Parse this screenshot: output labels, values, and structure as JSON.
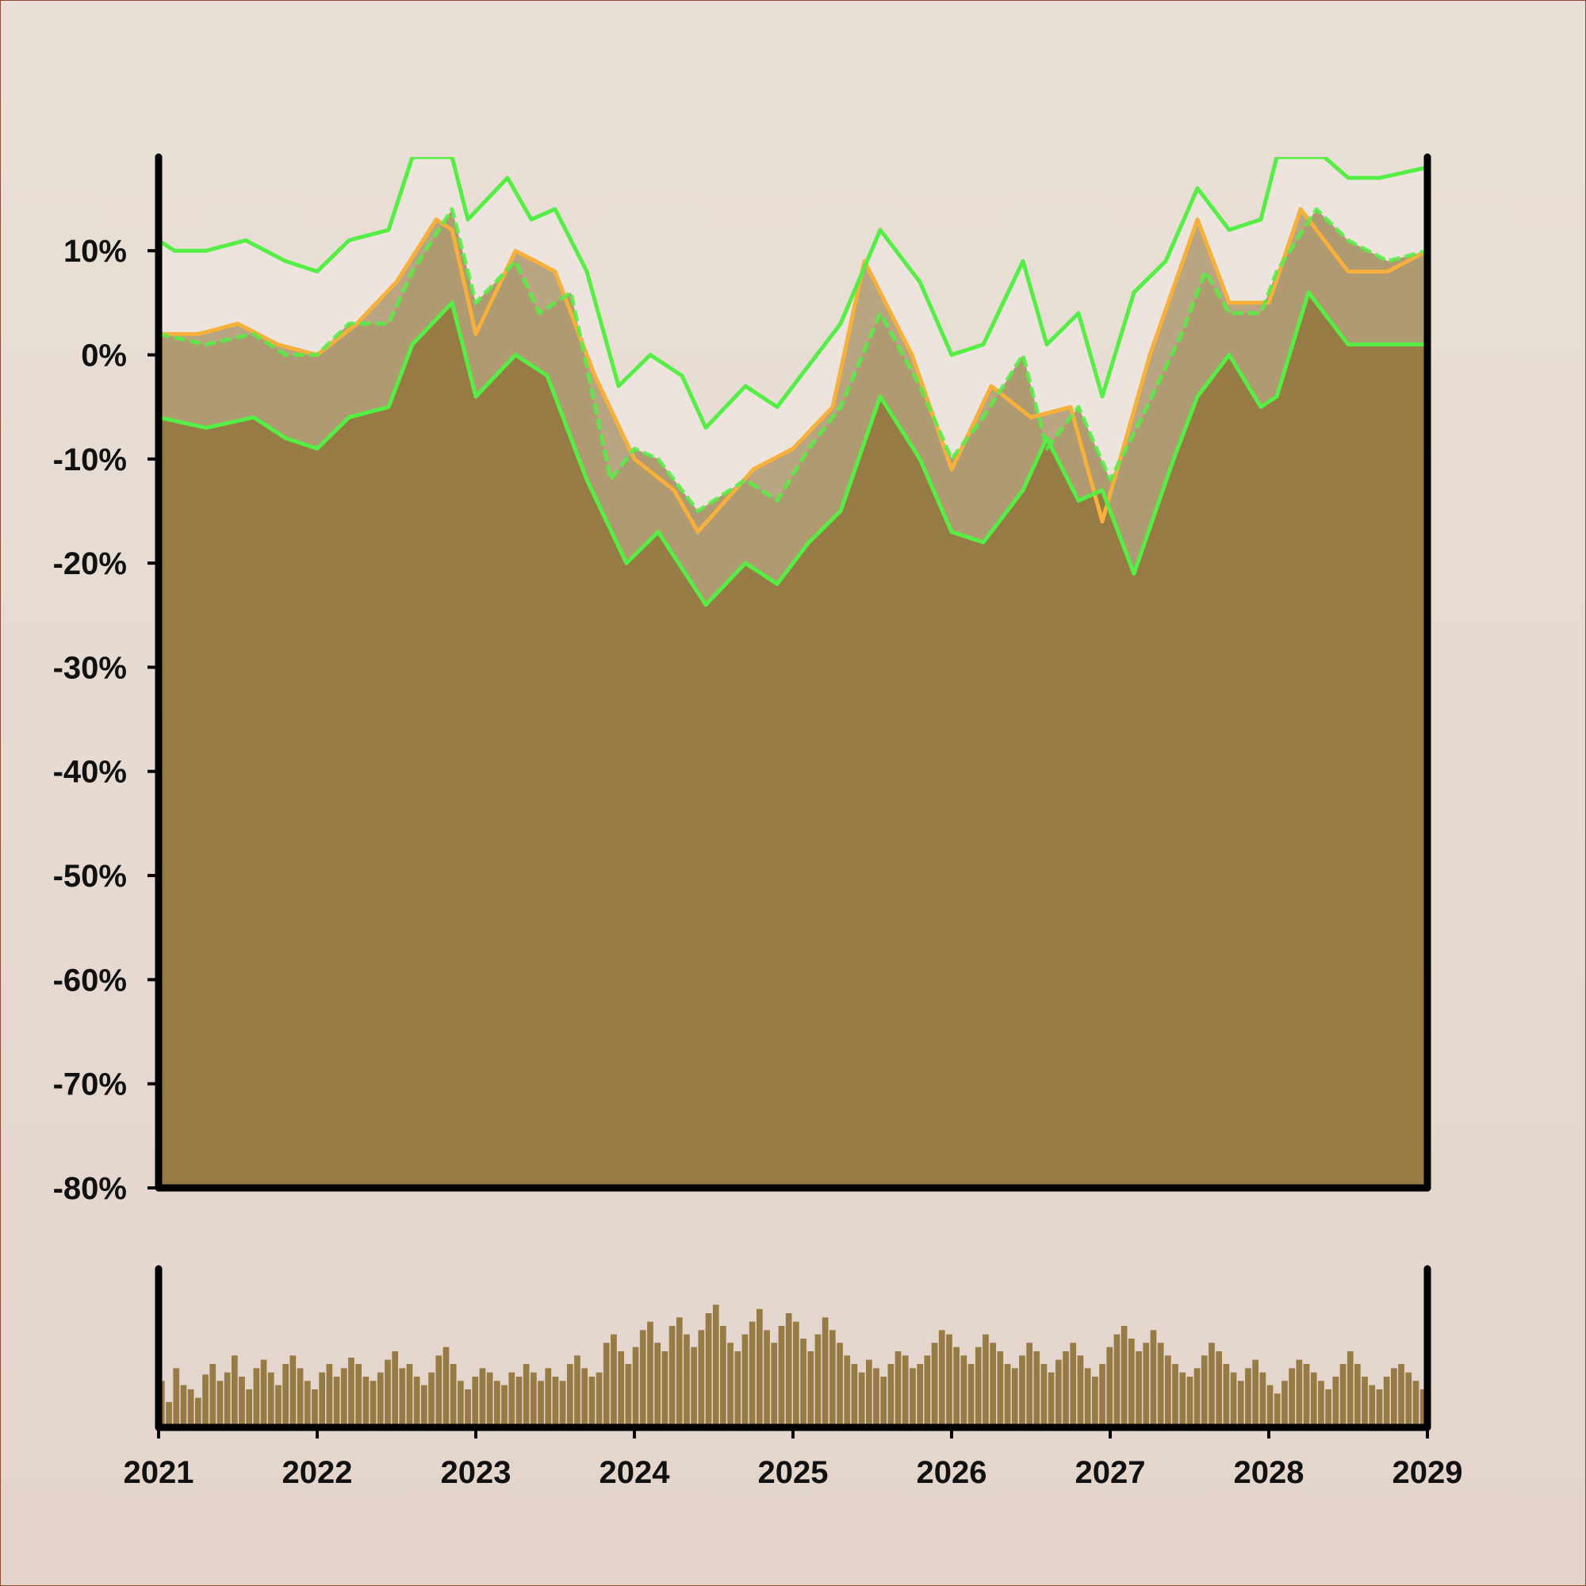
{
  "chart_data": {
    "type": "area",
    "title": "",
    "xlabel": "",
    "ylabel": "",
    "x_tick_labels": [
      "2021",
      "2022",
      "2023",
      "2024",
      "2025",
      "2026",
      "2027",
      "2028",
      "2029"
    ],
    "y_tick_labels": [
      "10%",
      "0%",
      "-10%",
      "-20%",
      "-30%",
      "-40%",
      "-50%",
      "-60%",
      "-70%",
      "-80%"
    ],
    "y_tick_values": [
      10,
      0,
      -10,
      -20,
      -30,
      -40,
      -50,
      -60,
      -70,
      -80
    ],
    "xlim": [
      2021,
      2029
    ],
    "ylim": [
      -80,
      19
    ],
    "grid": false,
    "legend": "none",
    "series": [
      {
        "kind": "price-area",
        "x": [
          2021.0,
          2021.25,
          2021.5,
          2021.75,
          2022.0,
          2022.25,
          2022.5,
          2022.75,
          2022.85,
          2023.0,
          2023.25,
          2023.5,
          2023.75,
          2024.0,
          2024.25,
          2024.4,
          2024.75,
          2025.0,
          2025.25,
          2025.45,
          2025.75,
          2026.0,
          2026.25,
          2026.5,
          2026.75,
          2026.95,
          2027.25,
          2027.55,
          2027.75,
          2028.0,
          2028.2,
          2028.5,
          2028.75,
          2029.0
        ],
        "values": [
          2,
          2,
          3,
          1,
          0,
          3,
          7,
          13,
          12,
          2,
          10,
          8,
          -2,
          -10,
          -13,
          -17,
          -11,
          -9,
          -5,
          9,
          0,
          -11,
          -3,
          -6,
          -5,
          -16,
          0,
          13,
          5,
          5,
          14,
          8,
          8,
          10
        ]
      },
      {
        "kind": "upper-band",
        "x": [
          2021.0,
          2021.1,
          2021.3,
          2021.55,
          2021.8,
          2022.0,
          2022.2,
          2022.45,
          2022.6,
          2022.85,
          2022.95,
          2023.2,
          2023.35,
          2023.5,
          2023.7,
          2023.9,
          2024.1,
          2024.3,
          2024.45,
          2024.7,
          2024.9,
          2025.1,
          2025.3,
          2025.55,
          2025.8,
          2026.0,
          2026.2,
          2026.45,
          2026.6,
          2026.8,
          2026.95,
          2027.15,
          2027.35,
          2027.55,
          2027.75,
          2027.95,
          2028.05,
          2028.35,
          2028.5,
          2028.7,
          2029.0
        ],
        "values": [
          11,
          10,
          10,
          11,
          9,
          8,
          11,
          12,
          19,
          19,
          13,
          17,
          13,
          14,
          8,
          -3,
          0,
          -2,
          -7,
          -3,
          -5,
          -1,
          3,
          12,
          7,
          0,
          1,
          9,
          1,
          4,
          -4,
          6,
          9,
          16,
          12,
          13,
          19,
          19,
          17,
          17,
          18
        ]
      },
      {
        "kind": "middle-band",
        "x": [
          2021.0,
          2021.3,
          2021.6,
          2021.8,
          2022.0,
          2022.2,
          2022.45,
          2022.6,
          2022.85,
          2023.0,
          2023.25,
          2023.4,
          2023.6,
          2023.85,
          2024.0,
          2024.15,
          2024.4,
          2024.7,
          2024.9,
          2025.1,
          2025.3,
          2025.55,
          2025.8,
          2026.0,
          2026.2,
          2026.45,
          2026.6,
          2026.8,
          2027.0,
          2027.2,
          2027.45,
          2027.6,
          2027.75,
          2027.95,
          2028.05,
          2028.3,
          2028.5,
          2028.75,
          2029.0
        ],
        "values": [
          2,
          1,
          2,
          0,
          0,
          3,
          3,
          8,
          14,
          5,
          9,
          4,
          6,
          -12,
          -9,
          -10,
          -15,
          -12,
          -14,
          -9,
          -5,
          4,
          -3,
          -10,
          -6,
          0,
          -9,
          -5,
          -12,
          -6,
          2,
          8,
          4,
          4,
          8,
          14,
          11,
          9,
          10
        ]
      },
      {
        "kind": "lower-band",
        "x": [
          2021.0,
          2021.3,
          2021.6,
          2021.8,
          2022.0,
          2022.2,
          2022.45,
          2022.6,
          2022.85,
          2023.0,
          2023.25,
          2023.45,
          2023.7,
          2023.95,
          2024.15,
          2024.45,
          2024.7,
          2024.9,
          2025.1,
          2025.3,
          2025.55,
          2025.8,
          2026.0,
          2026.2,
          2026.45,
          2026.6,
          2026.8,
          2026.95,
          2027.15,
          2027.4,
          2027.55,
          2027.75,
          2027.95,
          2028.05,
          2028.25,
          2028.5,
          2028.75,
          2029.0
        ],
        "values": [
          -6,
          -7,
          -6,
          -8,
          -9,
          -6,
          -5,
          1,
          5,
          -4,
          0,
          -2,
          -12,
          -20,
          -17,
          -24,
          -20,
          -22,
          -18,
          -15,
          -4,
          -10,
          -17,
          -18,
          -13,
          -8,
          -14,
          -13,
          -21,
          -10,
          -4,
          0,
          -5,
          -4,
          6,
          1,
          1,
          1
        ]
      }
    ],
    "volume": {
      "label": "",
      "x_range": [
        2021,
        2029
      ],
      "values": [
        22,
        12,
        28,
        20,
        18,
        14,
        25,
        30,
        22,
        26,
        34,
        24,
        18,
        28,
        32,
        26,
        20,
        30,
        34,
        28,
        22,
        18,
        26,
        30,
        24,
        28,
        33,
        30,
        24,
        22,
        26,
        32,
        36,
        28,
        30,
        24,
        20,
        26,
        34,
        38,
        30,
        22,
        18,
        24,
        28,
        26,
        22,
        20,
        26,
        24,
        30,
        26,
        22,
        28,
        24,
        22,
        30,
        34,
        28,
        24,
        26,
        40,
        44,
        36,
        30,
        38,
        46,
        50,
        40,
        36,
        48,
        52,
        44,
        38,
        46,
        54,
        58,
        48,
        40,
        36,
        44,
        50,
        56,
        46,
        40,
        48,
        54,
        50,
        42,
        36,
        44,
        52,
        46,
        40,
        34,
        30,
        26,
        32,
        28,
        24,
        30,
        36,
        34,
        28,
        30,
        34,
        40,
        46,
        44,
        38,
        34,
        30,
        38,
        44,
        40,
        36,
        30,
        28,
        34,
        40,
        36,
        30,
        26,
        32,
        36,
        40,
        34,
        28,
        24,
        30,
        38,
        44,
        48,
        42,
        36,
        40,
        46,
        40,
        34,
        30,
        26,
        24,
        28,
        34,
        40,
        36,
        30,
        26,
        22,
        28,
        32,
        26,
        20,
        16,
        22,
        28,
        32,
        30,
        26,
        22,
        18,
        24,
        30,
        36,
        30,
        24,
        20,
        18,
        24,
        28,
        30,
        26,
        22,
        18
      ]
    }
  },
  "colors": {
    "background_top": "#e8e0d6",
    "background_bottom": "#e4d4cc",
    "border": "#8a4a3a",
    "area_fill": "#977b45",
    "band_fill": "#b09a72",
    "band_outer_fill": "#ede4de",
    "price_line": "#f7b03a",
    "band_lines": "#55ee44",
    "axis": "#000000"
  }
}
